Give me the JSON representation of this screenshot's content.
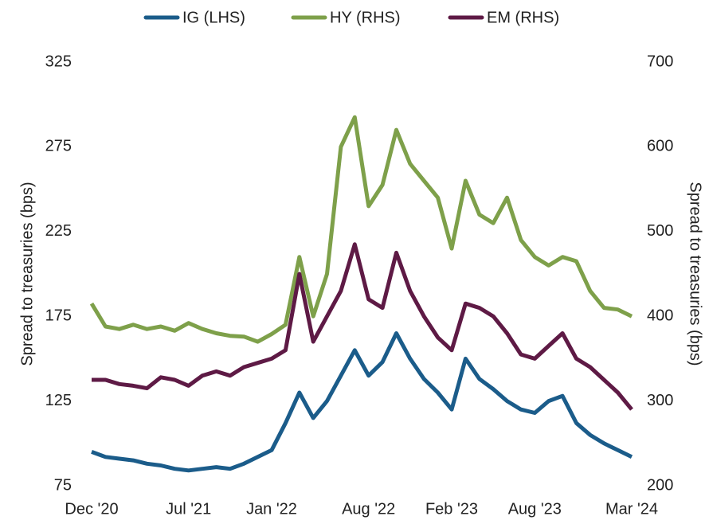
{
  "chart_data": {
    "type": "line",
    "categories": [
      "Dec '20",
      null,
      null,
      null,
      null,
      null,
      null,
      "Jul '21",
      null,
      null,
      null,
      null,
      null,
      "Jan '22",
      null,
      null,
      null,
      null,
      null,
      null,
      "Aug '22",
      null,
      null,
      null,
      null,
      null,
      "Feb '23",
      null,
      null,
      null,
      null,
      null,
      "Aug '23",
      null,
      null,
      null,
      null,
      null,
      null,
      "Mar '24"
    ],
    "series": [
      {
        "name": "IG (LHS)",
        "color": "#1b5c8a",
        "axis": "y",
        "values": [
          95,
          92,
          91,
          90,
          88,
          87,
          85,
          84,
          85,
          86,
          85,
          88,
          92,
          96,
          112,
          130,
          115,
          125,
          140,
          155,
          140,
          148,
          165,
          150,
          138,
          130,
          120,
          150,
          138,
          132,
          125,
          120,
          118,
          125,
          128,
          112,
          105,
          100,
          96,
          92
        ]
      },
      {
        "name": "HY (RHS)",
        "color": "#7ea04a",
        "axis": "y2",
        "values": [
          415,
          388,
          385,
          390,
          385,
          388,
          383,
          392,
          385,
          380,
          377,
          376,
          370,
          379,
          390,
          470,
          400,
          450,
          600,
          635,
          530,
          555,
          620,
          580,
          560,
          540,
          480,
          560,
          520,
          510,
          540,
          490,
          470,
          460,
          470,
          465,
          430,
          410,
          408,
          400
        ]
      },
      {
        "name": "EM (RHS)",
        "color": "#5e1a45",
        "axis": "y2",
        "values": [
          325,
          325,
          320,
          318,
          315,
          328,
          325,
          318,
          330,
          335,
          330,
          340,
          345,
          350,
          360,
          450,
          370,
          400,
          430,
          485,
          420,
          410,
          475,
          430,
          400,
          375,
          360,
          415,
          410,
          400,
          380,
          355,
          350,
          365,
          380,
          350,
          340,
          325,
          310,
          290
        ]
      }
    ],
    "ylabel": "Spread to treasuries (bps)",
    "y2label": "Spread to treasuries (bps)",
    "ylim": [
      75,
      325
    ],
    "yticks": [
      75,
      125,
      175,
      225,
      275,
      325
    ],
    "y2lim": [
      200,
      700
    ],
    "y2ticks": [
      200,
      300,
      400,
      500,
      600,
      700
    ],
    "grid": false,
    "legend": "top"
  }
}
